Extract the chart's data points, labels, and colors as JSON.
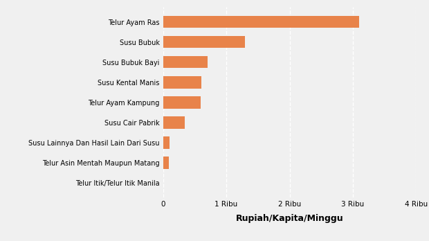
{
  "categories": [
    "Telur Itik/Telur Itik Manila",
    "Telur Asin Mentah Maupun Matang",
    "Susu Lainnya Dan Hasil Lain Dari Susu",
    "Susu Cair Pabrik",
    "Telur Ayam Kampung",
    "Susu Kental Manis",
    "Susu Bubuk Bayi",
    "Susu Bubuk",
    "Telur Ayam Ras"
  ],
  "values": [
    5,
    95,
    105,
    340,
    600,
    610,
    700,
    1300,
    3100
  ],
  "bar_color": "#E8834A",
  "xlabel": "Rupiah/Kapita/Minggu",
  "xlim": [
    0,
    4000
  ],
  "xticks": [
    0,
    1000,
    2000,
    3000,
    4000
  ],
  "xticklabels": [
    "0",
    "1 Ribu",
    "2 Ribu",
    "3 Ribu",
    "4 Ribu"
  ],
  "background_color": "#F0F0F0",
  "grid_color": "#FFFFFF",
  "bar_height": 0.6,
  "xlabel_fontsize": 9,
  "xlabel_fontweight": "bold",
  "ytick_fontsize": 7,
  "xtick_fontsize": 7.5
}
